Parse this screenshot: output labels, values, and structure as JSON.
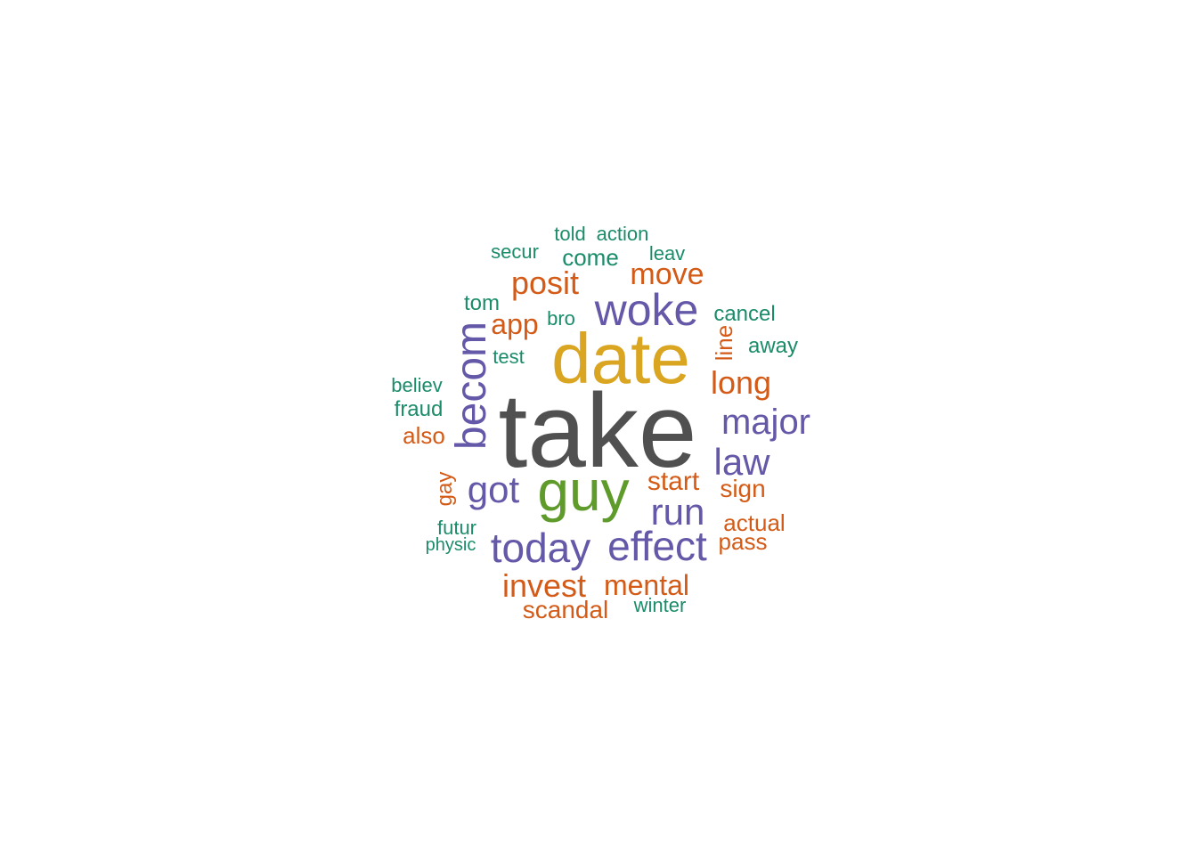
{
  "palette": {
    "gray": "#505050",
    "gold": "#DAA520",
    "green": "#5E9B2A",
    "purple": "#6458A8",
    "orange": "#D35B17",
    "teal": "#1B8C6A"
  },
  "words": [
    {
      "id": "take",
      "text": "take",
      "color": "gray",
      "rotated": false
    },
    {
      "id": "date",
      "text": "date",
      "color": "gold",
      "rotated": false
    },
    {
      "id": "guy",
      "text": "guy",
      "color": "green",
      "rotated": false
    },
    {
      "id": "woke",
      "text": "woke",
      "color": "purple",
      "rotated": false
    },
    {
      "id": "becom",
      "text": "becom",
      "color": "purple",
      "rotated": true
    },
    {
      "id": "today",
      "text": "today",
      "color": "purple",
      "rotated": false
    },
    {
      "id": "effect",
      "text": "effect",
      "color": "purple",
      "rotated": false
    },
    {
      "id": "major",
      "text": "major",
      "color": "purple",
      "rotated": false
    },
    {
      "id": "run",
      "text": "run",
      "color": "purple",
      "rotated": false
    },
    {
      "id": "law",
      "text": "law",
      "color": "purple",
      "rotated": false
    },
    {
      "id": "got",
      "text": "got",
      "color": "purple",
      "rotated": false
    },
    {
      "id": "invest",
      "text": "invest",
      "color": "orange",
      "rotated": false
    },
    {
      "id": "mental",
      "text": "mental",
      "color": "orange",
      "rotated": false
    },
    {
      "id": "posit",
      "text": "posit",
      "color": "orange",
      "rotated": false
    },
    {
      "id": "move",
      "text": "move",
      "color": "orange",
      "rotated": false
    },
    {
      "id": "long",
      "text": "long",
      "color": "orange",
      "rotated": false
    },
    {
      "id": "app",
      "text": "app",
      "color": "orange",
      "rotated": false
    },
    {
      "id": "scandal",
      "text": "scandal",
      "color": "orange",
      "rotated": false
    },
    {
      "id": "start",
      "text": "start",
      "color": "orange",
      "rotated": false
    },
    {
      "id": "sign",
      "text": "sign",
      "color": "orange",
      "rotated": false
    },
    {
      "id": "actual",
      "text": "actual",
      "color": "orange",
      "rotated": false
    },
    {
      "id": "pass",
      "text": "pass",
      "color": "orange",
      "rotated": false
    },
    {
      "id": "also",
      "text": "also",
      "color": "orange",
      "rotated": false
    },
    {
      "id": "line",
      "text": "line",
      "color": "orange",
      "rotated": true
    },
    {
      "id": "gay",
      "text": "gay",
      "color": "orange",
      "rotated": true
    },
    {
      "id": "come",
      "text": "come",
      "color": "teal",
      "rotated": false
    },
    {
      "id": "cancel",
      "text": "cancel",
      "color": "teal",
      "rotated": false
    },
    {
      "id": "away",
      "text": "away",
      "color": "teal",
      "rotated": false
    },
    {
      "id": "tom",
      "text": "tom",
      "color": "teal",
      "rotated": false
    },
    {
      "id": "bro",
      "text": "bro",
      "color": "teal",
      "rotated": false
    },
    {
      "id": "test",
      "text": "test",
      "color": "teal",
      "rotated": false
    },
    {
      "id": "believ",
      "text": "believ",
      "color": "teal",
      "rotated": false
    },
    {
      "id": "fraud",
      "text": "fraud",
      "color": "teal",
      "rotated": false
    },
    {
      "id": "futur",
      "text": "futur",
      "color": "teal",
      "rotated": false
    },
    {
      "id": "physic",
      "text": "physic",
      "color": "teal",
      "rotated": false
    },
    {
      "id": "winter",
      "text": "winter",
      "color": "teal",
      "rotated": false
    },
    {
      "id": "secur",
      "text": "secur",
      "color": "teal",
      "rotated": false
    },
    {
      "id": "told",
      "text": "told",
      "color": "teal",
      "rotated": false
    },
    {
      "id": "action",
      "text": "action",
      "color": "teal",
      "rotated": false
    },
    {
      "id": "leav",
      "text": "leav",
      "color": "teal",
      "rotated": false
    }
  ]
}
